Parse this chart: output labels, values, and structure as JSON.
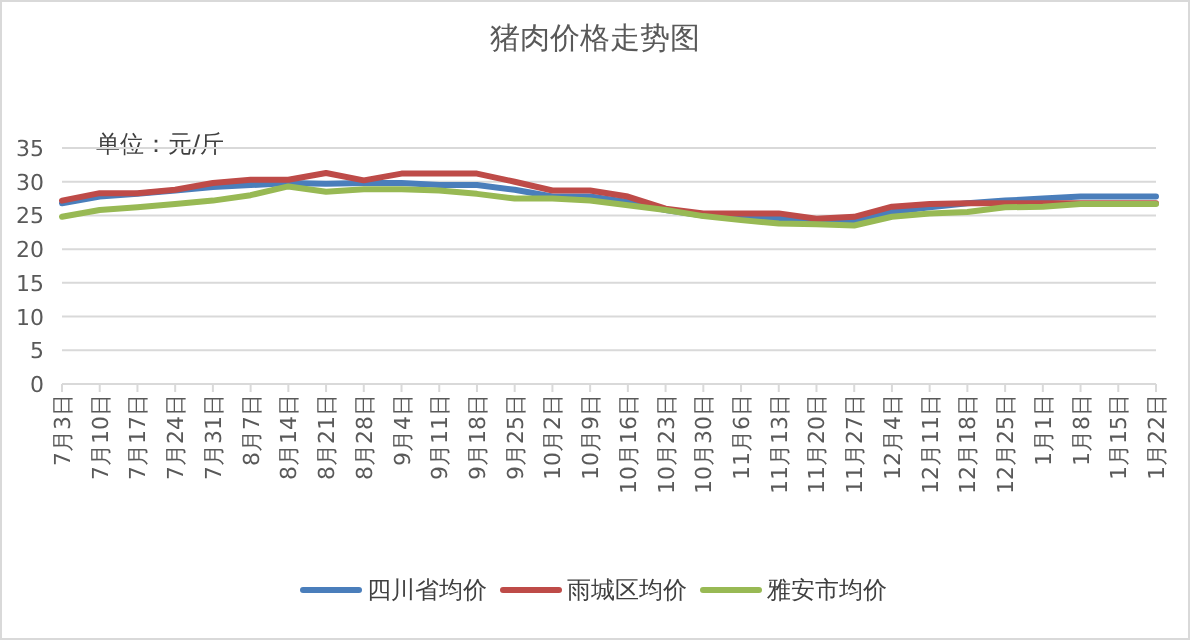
{
  "chart_data": {
    "type": "line",
    "title": "猪肉价格走势图",
    "annotations": [
      "单位：元/斤"
    ],
    "categories": [
      "7月3日",
      "7月10日",
      "7月17日",
      "7月24日",
      "7月31日",
      "8月7日",
      "8月14日",
      "8月21日",
      "8月28日",
      "9月4日",
      "9月11日",
      "9月18日",
      "9月25日",
      "10月2日",
      "10月9日",
      "10月16日",
      "10月23日",
      "10月30日",
      "11月6日",
      "11月13日",
      "11月20日",
      "11月27日",
      "12月4日",
      "12月11日",
      "12月18日",
      "12月25日",
      "1月1日",
      "1月8日",
      "1月15日",
      "1月22日"
    ],
    "series": [
      {
        "name": "四川省均价",
        "color": "#4a7ebb",
        "values": [
          26.8,
          27.8,
          28.2,
          28.7,
          29.2,
          29.5,
          29.8,
          29.7,
          29.8,
          29.8,
          29.5,
          29.5,
          28.8,
          27.8,
          27.8,
          27.0,
          25.8,
          25.0,
          24.8,
          24.5,
          24.0,
          24.2,
          25.5,
          26.2,
          26.8,
          27.2,
          27.5,
          27.8,
          27.8,
          27.8
        ]
      },
      {
        "name": "雨城区均价",
        "color": "#be4b48",
        "values": [
          27.2,
          28.3,
          28.3,
          28.8,
          29.8,
          30.3,
          30.3,
          31.3,
          30.2,
          31.2,
          31.2,
          31.2,
          30.0,
          28.7,
          28.7,
          27.8,
          26.0,
          25.3,
          25.3,
          25.3,
          24.5,
          24.8,
          26.3,
          26.7,
          26.8,
          26.8,
          26.8,
          26.8,
          26.8,
          26.8
        ]
      },
      {
        "name": "雅安市均价",
        "color": "#98b954",
        "values": [
          24.8,
          25.8,
          26.2,
          26.7,
          27.2,
          28.0,
          29.3,
          28.5,
          28.9,
          28.9,
          28.7,
          28.2,
          27.5,
          27.5,
          27.2,
          26.5,
          25.8,
          24.9,
          24.3,
          23.8,
          23.7,
          23.5,
          24.8,
          25.3,
          25.5,
          26.2,
          26.3,
          26.7,
          26.7,
          26.7
        ]
      }
    ],
    "ylim": [
      0,
      35
    ],
    "yticks": [
      0,
      5,
      10,
      15,
      20,
      25,
      30,
      35
    ],
    "grid": "y",
    "legend": "bottom",
    "marker": "none",
    "line_style": "solid"
  }
}
